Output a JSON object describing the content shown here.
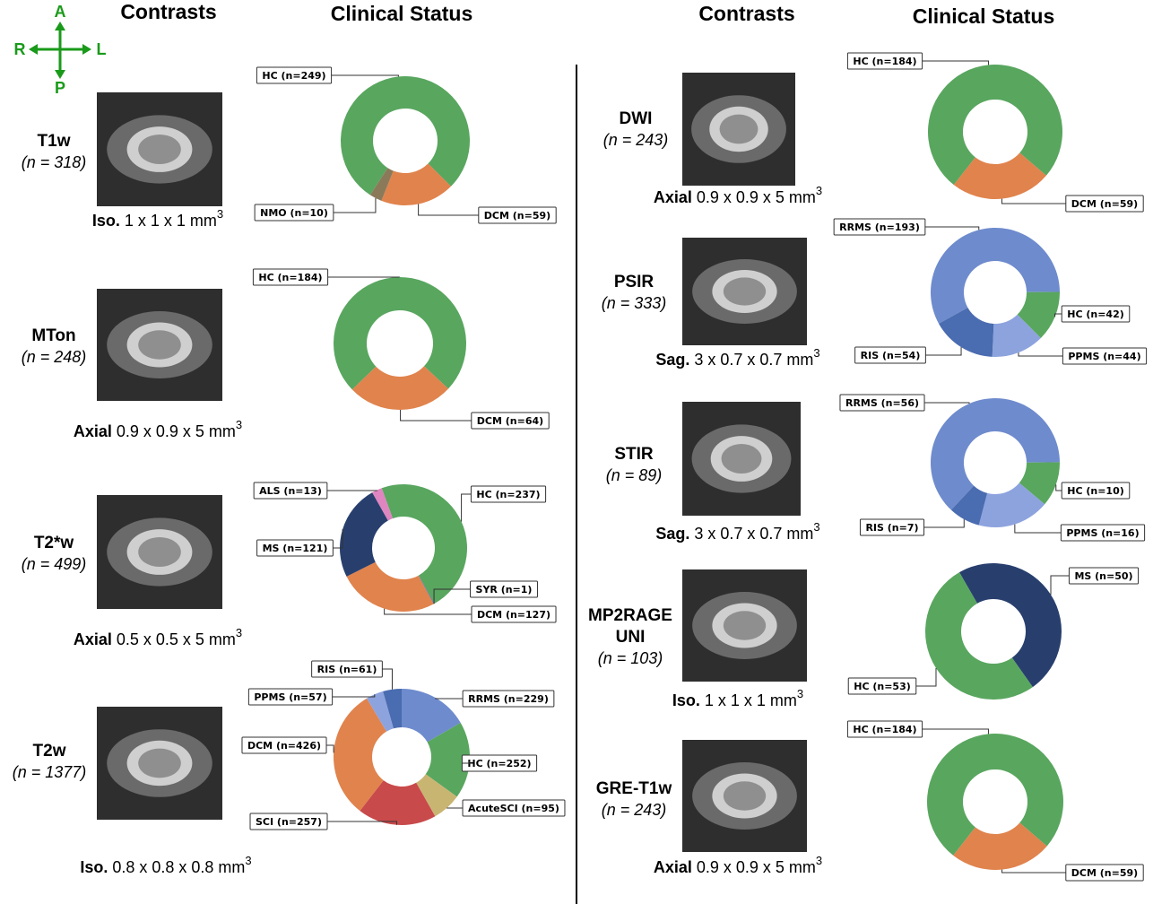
{
  "headers": {
    "left": {
      "contrasts": "Contrasts",
      "clinical_status": "Clinical Status"
    },
    "right": {
      "contrasts": "Contrasts",
      "clinical_status": "Clinical Status"
    }
  },
  "orientation": {
    "anterior": "A",
    "posterior": "P",
    "right": "R",
    "left": "L"
  },
  "contrasts": [
    {
      "name_lines": [
        "T1w"
      ],
      "n": "(n = 318)",
      "plane": "Iso.",
      "resolution": "1 x 1 x 1 mm",
      "exponent": "3"
    },
    {
      "name_lines": [
        "MTon"
      ],
      "n": "(n = 248)",
      "plane": "Axial",
      "resolution": "0.9 x 0.9 x 5 mm",
      "exponent": "3"
    },
    {
      "name_lines": [
        "T2*w"
      ],
      "n": "(n = 499)",
      "plane": "Axial",
      "resolution": "0.5 x 0.5 x 5 mm",
      "exponent": "3"
    },
    {
      "name_lines": [
        "T2w"
      ],
      "n": "(n = 1377)",
      "plane": "Iso.",
      "resolution": "0.8 x 0.8 x 0.8 mm",
      "exponent": "3"
    },
    {
      "name_lines": [
        "DWI"
      ],
      "n": "(n = 243)",
      "plane": "Axial",
      "resolution": "0.9 x 0.9 x 5 mm",
      "exponent": "3"
    },
    {
      "name_lines": [
        "PSIR"
      ],
      "n": "(n = 333)",
      "plane": "Sag.",
      "resolution": "3 x 0.7 x 0.7 mm",
      "exponent": "3"
    },
    {
      "name_lines": [
        "STIR"
      ],
      "n": "(n = 89)",
      "plane": "Sag.",
      "resolution": "3 x 0.7 x 0.7 mm",
      "exponent": "3"
    },
    {
      "name_lines": [
        "MP2RAGE",
        "UNI"
      ],
      "n": "(n = 103)",
      "plane": "Iso.",
      "resolution": "1 x 1 x 1 mm",
      "exponent": "3"
    },
    {
      "name_lines": [
        "GRE-T1w"
      ],
      "n": "(n = 243)",
      "plane": "Axial",
      "resolution": "0.9 x 0.9 x 5 mm",
      "exponent": "3"
    }
  ],
  "chart_data": [
    {
      "type": "pie",
      "startangle": 213,
      "values": [
        249,
        59,
        10
      ],
      "value_labels": [
        "HC (n=249)",
        "DCM (n=59)",
        "NMO (n=10)"
      ],
      "colors": [
        "#59a65f",
        "#e0834d",
        "#8b7a5a"
      ]
    },
    {
      "type": "pie",
      "startangle": 226,
      "values": [
        184,
        64
      ],
      "value_labels": [
        "HC (n=184)",
        "DCM (n=64)"
      ],
      "colors": [
        "#59a65f",
        "#e0834d"
      ]
    },
    {
      "type": "pie",
      "startangle": 340,
      "values": [
        237,
        1,
        127,
        121,
        13
      ],
      "value_labels": [
        "HC (n=237)",
        "SYR (n=1)",
        "DCM (n=127)",
        "MS (n=121)",
        "ALS (n=13)"
      ],
      "colors": [
        "#59a65f",
        "#6b6bb0",
        "#e0834d",
        "#283f6e",
        "#df85c0"
      ]
    },
    {
      "type": "pie",
      "startangle": 0,
      "values": [
        229,
        252,
        95,
        257,
        426,
        57,
        61
      ],
      "value_labels": [
        "RRMS (n=229)",
        "HC (n=252)",
        "AcuteSCI (n=95)",
        "SCI (n=257)",
        "DCM (n=426)",
        "PPMS (n=57)",
        "RIS (n=61)"
      ],
      "colors": [
        "#6e8bcd",
        "#59a65f",
        "#c9b572",
        "#c84a4b",
        "#e0834d",
        "#8da3de",
        "#4a6cb0"
      ]
    },
    {
      "type": "pie",
      "startangle": 218,
      "values": [
        184,
        59
      ],
      "value_labels": [
        "HC (n=184)",
        "DCM (n=59)"
      ],
      "colors": [
        "#59a65f",
        "#e0834d"
      ]
    },
    {
      "type": "pie",
      "startangle": 241,
      "values": [
        193,
        42,
        44,
        54
      ],
      "value_labels": [
        "RRMS (n=193)",
        "HC (n=42)",
        "PPMS (n=44)",
        "RIS (n=54)"
      ],
      "colors": [
        "#6e8bcd",
        "#59a65f",
        "#8da3de",
        "#4a6cb0"
      ]
    },
    {
      "type": "pie",
      "startangle": 223,
      "values": [
        56,
        10,
        16,
        7
      ],
      "value_labels": [
        "RRMS (n=56)",
        "HC (n=10)",
        "PPMS (n=16)",
        "RIS (n=7)"
      ],
      "colors": [
        "#6e8bcd",
        "#59a65f",
        "#8da3de",
        "#4a6cb0"
      ]
    },
    {
      "type": "pie",
      "startangle": 330,
      "values": [
        50,
        53
      ],
      "value_labels": [
        "MS (n=50)",
        "HC (n=53)"
      ],
      "colors": [
        "#283f6e",
        "#59a65f"
      ]
    },
    {
      "type": "pie",
      "startangle": 218,
      "values": [
        184,
        59
      ],
      "value_labels": [
        "HC (n=184)",
        "DCM (n=59)"
      ],
      "colors": [
        "#59a65f",
        "#e0834d"
      ]
    }
  ]
}
